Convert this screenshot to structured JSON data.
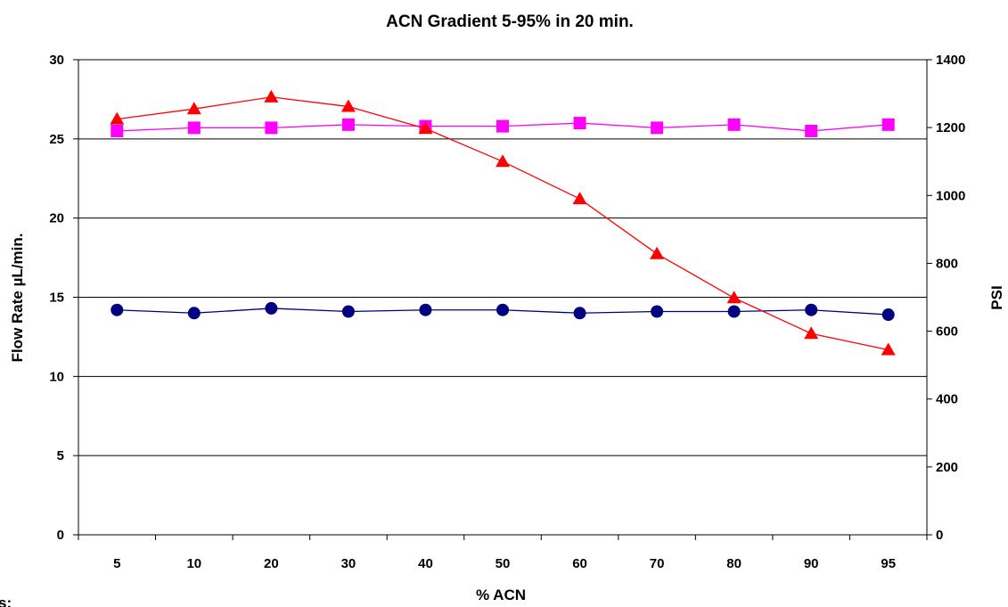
{
  "chart_data": {
    "type": "line",
    "title": "ACN Gradient 5-95% in 20 min.",
    "xlabel": "% ACN",
    "ylabel": "Flow Rate µL/min.",
    "ylabel_right": "PSI",
    "categories": [
      "5",
      "10",
      "20",
      "30",
      "40",
      "50",
      "60",
      "70",
      "80",
      "90",
      "95"
    ],
    "ylim": [
      0,
      30
    ],
    "ylim_right": [
      0,
      1400
    ],
    "yticks": [
      "0",
      "5",
      "10",
      "15",
      "20",
      "25",
      "30"
    ],
    "yticks_right": [
      "0",
      "200",
      "400",
      "600",
      "800",
      "1000",
      "1200",
      "1400"
    ],
    "grid": "horizontal",
    "series": [
      {
        "axis": "left",
        "marker": "circle",
        "color": "#000080",
        "values": [
          14.2,
          14.0,
          14.3,
          14.1,
          14.2,
          14.2,
          14.0,
          14.1,
          14.1,
          14.2,
          13.9
        ]
      },
      {
        "axis": "left",
        "marker": "square",
        "color": "#FF00FF",
        "values": [
          25.5,
          25.7,
          25.7,
          25.9,
          25.8,
          25.8,
          26.0,
          25.7,
          25.9,
          25.5,
          25.9
        ]
      },
      {
        "axis": "right",
        "marker": "triangle",
        "color": "#FF0000",
        "values": [
          1225,
          1255,
          1290,
          1262,
          1197,
          1100,
          990,
          828,
          698,
          593,
          545
        ]
      }
    ]
  },
  "page": {
    "partial_text": "s:"
  }
}
